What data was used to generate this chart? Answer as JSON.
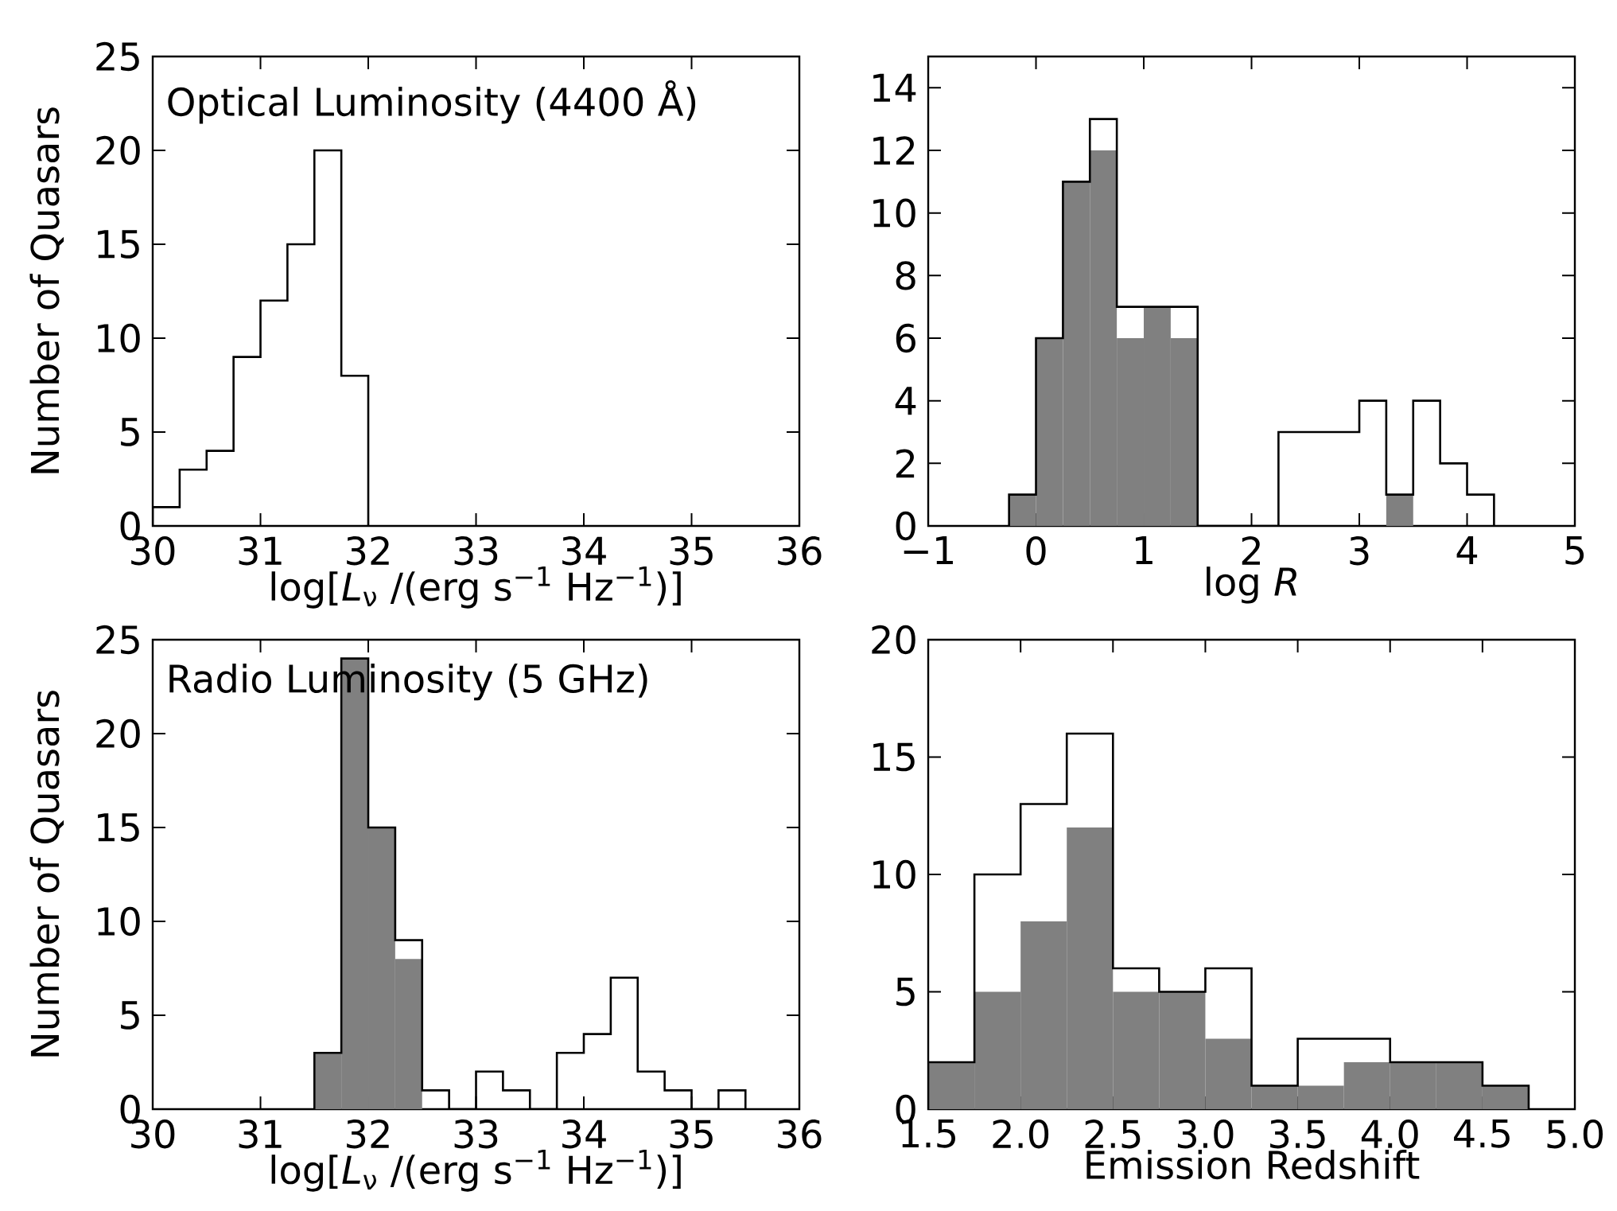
{
  "chart_data": [
    {
      "type": "histogram",
      "xlabel": "log[*L*$_{ν}$ /(erg s$^{−1}$ Hz$^{−1}$)]",
      "ylabel": "Number of Quasars",
      "annotations": [
        "Optical Luminosity (4400 Å)"
      ],
      "bins": [
        30,
        30.25,
        30.5,
        30.75,
        31,
        31.25,
        31.5,
        31.75,
        32
      ],
      "series": [
        {
          "color": "#000000",
          "values": [
            1,
            3,
            4,
            9,
            12,
            15,
            20,
            8
          ]
        }
      ],
      "xlim": [
        30,
        36
      ],
      "xticks": [
        30,
        31,
        32,
        33,
        34,
        35,
        36
      ],
      "ylim": [
        0,
        25
      ],
      "yticks": [
        0,
        5,
        10,
        15,
        20,
        25
      ]
    },
    {
      "type": "histogram",
      "xlabel": "log *R*",
      "bins": [
        -0.25,
        0,
        0.25,
        0.5,
        0.75,
        1,
        1.25,
        1.5,
        1.75,
        2,
        2.25,
        2.5,
        2.75,
        3,
        3.25,
        3.5,
        3.75,
        4,
        4.25
      ],
      "series": [
        {
          "color": "#000000",
          "values": [
            1,
            6,
            11,
            13,
            7,
            7,
            7,
            0,
            0,
            0,
            3,
            3,
            3,
            4,
            1,
            4,
            2,
            1
          ]
        },
        {
          "color": "#808080",
          "values": [
            1,
            6,
            11,
            12,
            6,
            7,
            6,
            0,
            0,
            0,
            0,
            0,
            0,
            0,
            1,
            0,
            0,
            0
          ]
        }
      ],
      "xlim": [
        -1,
        5
      ],
      "xticks": [
        {
          "value": -1,
          "label": "−1"
        },
        0,
        1,
        2,
        3,
        4,
        5
      ],
      "ylim": [
        0,
        15
      ],
      "yticks": [
        0,
        2,
        4,
        6,
        8,
        10,
        12,
        14
      ]
    },
    {
      "type": "histogram",
      "xlabel": "log[*L*$_{ν}$ /(erg s$^{−1}$ Hz$^{−1}$)]",
      "ylabel": "Number of Quasars",
      "annotations": [
        "Radio Luminosity (5 GHz)"
      ],
      "bins": [
        31.5,
        31.75,
        32,
        32.25,
        32.5,
        32.75,
        33,
        33.25,
        33.5,
        33.75,
        34,
        34.25,
        34.5,
        34.75,
        35,
        35.25,
        35.5
      ],
      "series": [
        {
          "color": "#000000",
          "values": [
            3,
            24,
            15,
            9,
            1,
            0,
            2,
            1,
            0,
            3,
            4,
            7,
            2,
            1,
            0,
            1
          ]
        },
        {
          "color": "#808080",
          "values": [
            3,
            24,
            15,
            8,
            0,
            0,
            0,
            0,
            0,
            0,
            0,
            0,
            0,
            0,
            0,
            0
          ]
        }
      ],
      "xlim": [
        30,
        36
      ],
      "xticks": [
        30,
        31,
        32,
        33,
        34,
        35,
        36
      ],
      "ylim": [
        0,
        25
      ],
      "yticks": [
        0,
        5,
        10,
        15,
        20,
        25
      ]
    },
    {
      "type": "histogram",
      "xlabel": "Emission Redshift",
      "bins": [
        1.5,
        1.75,
        2,
        2.25,
        2.5,
        2.75,
        3,
        3.25,
        3.5,
        3.75,
        4,
        4.25,
        4.5,
        4.75
      ],
      "series": [
        {
          "color": "#000000",
          "values": [
            2,
            10,
            13,
            16,
            6,
            5,
            6,
            1,
            3,
            3,
            2,
            2,
            1
          ]
        },
        {
          "color": "#808080",
          "values": [
            2,
            5,
            8,
            12,
            5,
            5,
            3,
            1,
            1,
            2,
            2,
            2,
            1
          ]
        }
      ],
      "xlim": [
        1.5,
        5
      ],
      "xticks": [
        1.5,
        {
          "value": 2,
          "label": "2.0"
        },
        2.5,
        {
          "value": 3,
          "label": "3.0"
        },
        3.5,
        {
          "value": 4,
          "label": "4.0"
        },
        4.5,
        {
          "value": 5,
          "label": "5.0"
        }
      ],
      "ylim": [
        0,
        20
      ],
      "yticks": [
        0,
        5,
        10,
        15,
        20
      ]
    }
  ]
}
